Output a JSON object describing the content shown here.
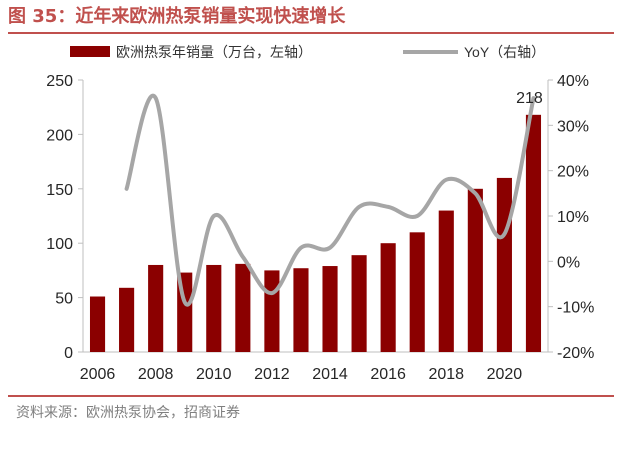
{
  "figure": {
    "title": "图 35：近年来欧洲热泵销量实现快速增长",
    "source": "资料来源：欧洲热泵协会，招商证券"
  },
  "chart_data": {
    "type": "bar",
    "x": [
      2006,
      2007,
      2008,
      2009,
      2010,
      2011,
      2012,
      2013,
      2014,
      2015,
      2016,
      2017,
      2018,
      2019,
      2020,
      2021
    ],
    "series": [
      {
        "name": "欧洲热泵年销量（万台，左轴）",
        "type": "bar",
        "axis": "left",
        "color": "#8b0000",
        "values": [
          51,
          59,
          80,
          73,
          80,
          81,
          75,
          77,
          79,
          89,
          100,
          110,
          130,
          150,
          160,
          218
        ]
      },
      {
        "name": "YoY（右轴）",
        "type": "line",
        "axis": "right",
        "color": "#a6a6a6",
        "values": [
          null,
          16,
          36,
          -9,
          10,
          1,
          -7,
          3,
          3,
          12,
          12,
          10,
          18,
          15,
          6,
          36
        ]
      }
    ],
    "data_labels": [
      {
        "x": 2021,
        "text": "218"
      }
    ],
    "y_left": {
      "min": 0,
      "max": 250,
      "ticks": [
        0,
        50,
        100,
        150,
        200,
        250
      ]
    },
    "y_right": {
      "min": -20,
      "max": 40,
      "ticks": [
        "-20%",
        "-10%",
        "0%",
        "10%",
        "20%",
        "30%",
        "40%"
      ]
    },
    "x_ticks": [
      2006,
      2008,
      2010,
      2012,
      2014,
      2016,
      2018,
      2020
    ],
    "legend_position": "top",
    "grid": false
  }
}
